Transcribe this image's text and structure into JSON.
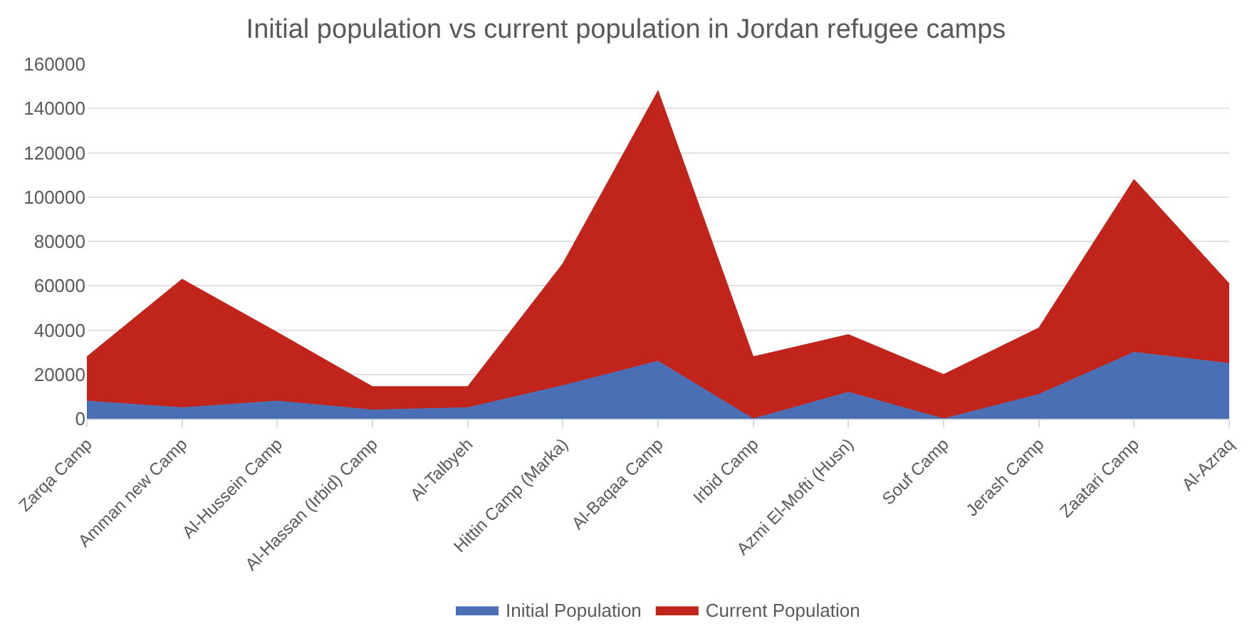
{
  "chart_data": {
    "type": "area",
    "title": "Initial population vs current population in Jordan refugee camps",
    "categories": [
      "Zarqa Camp",
      "Amman new Camp",
      "Al-Hussein Camp",
      "Al-Hassan (Irbid) Camp",
      "Al-Talbyeh",
      "Hittin Camp (Marka)",
      "Al-Baqaa Camp",
      "Irbid Camp",
      "Azmi El-Mofti (Husn)",
      "Souf Camp",
      "Jerash Camp",
      "Zaatari Camp",
      "Al-Azraq"
    ],
    "stacked": true,
    "series": [
      {
        "name": "Initial Population",
        "color": "#4a6fb5",
        "values": [
          8000,
          5000,
          8000,
          4000,
          5000,
          15000,
          26000,
          0,
          12000,
          0,
          11000,
          30000,
          25000
        ]
      },
      {
        "name": "Current Population",
        "color": "#c0241a",
        "values": [
          20000,
          58000,
          31000,
          10500,
          9500,
          55000,
          122000,
          28000,
          26000,
          20000,
          30000,
          78000,
          36000
        ]
      }
    ],
    "ylim": [
      0,
      160000
    ],
    "yticks": [
      0,
      20000,
      40000,
      60000,
      80000,
      100000,
      120000,
      140000,
      160000
    ],
    "grid": "y",
    "legend": "bottom"
  }
}
